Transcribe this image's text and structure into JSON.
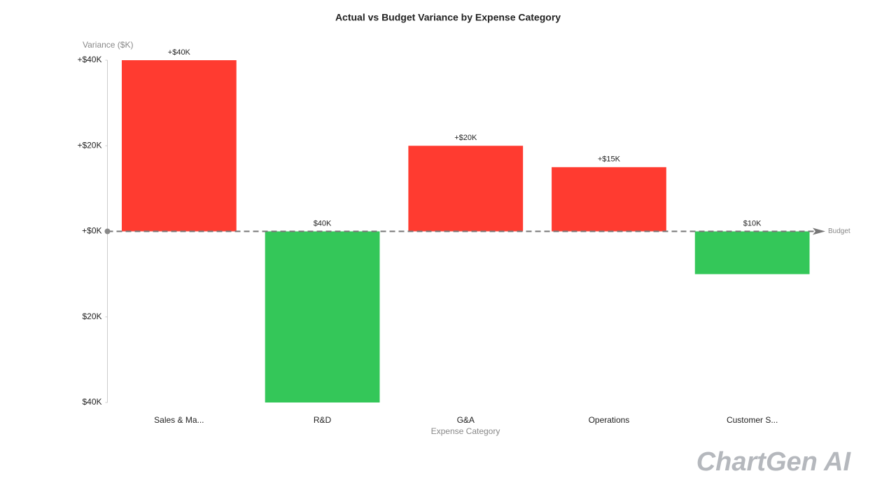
{
  "chart_data": {
    "type": "bar",
    "title": "Actual vs Budget Variance by Expense Category",
    "y_label": "Variance ($K)",
    "x_label": "Expense Category",
    "categories": [
      "Sales & Ma...",
      "R&D",
      "G&A",
      "Operations",
      "Customer S..."
    ],
    "values": [
      40,
      -40,
      20,
      15,
      -10
    ],
    "value_labels": [
      "+$40K",
      "$40K",
      "+$20K",
      "+$15K",
      "$10K"
    ],
    "colors": [
      "#ff3b30",
      "#34c759",
      "#ff3b30",
      "#ff3b30",
      "#34c759"
    ],
    "ylim": [
      -40,
      40
    ],
    "yticks": [
      {
        "value": -40,
        "label": "$40K"
      },
      {
        "value": -20,
        "label": "$20K"
      },
      {
        "value": 0,
        "label": "+$0K"
      },
      {
        "value": 20,
        "label": "+$20K"
      },
      {
        "value": 40,
        "label": "+$40K"
      }
    ],
    "baseline_label": "Budget",
    "watermark": "ChartGen AI"
  }
}
